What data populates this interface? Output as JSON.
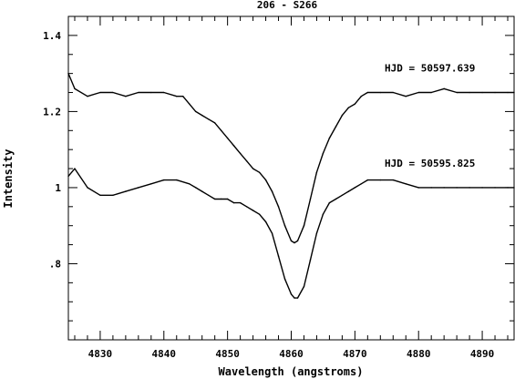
{
  "chart_data": {
    "type": "line",
    "title": "206 - S266",
    "xlabel": "Wavelength (angstroms)",
    "ylabel": "Intensity",
    "xlim": [
      4825,
      4895
    ],
    "ylim": [
      0.6,
      1.45
    ],
    "x_ticks": [
      4830,
      4840,
      4850,
      4860,
      4870,
      4880,
      4890
    ],
    "x_tick_labels": [
      "4830",
      "4840",
      "4850",
      "4860",
      "4870",
      "4880",
      "4890"
    ],
    "y_ticks": [
      0.8,
      1.0,
      1.2,
      1.4
    ],
    "y_tick_labels": [
      ".8",
      "1",
      "1.2",
      "1.4"
    ],
    "grid": false,
    "legend": "none",
    "line_color": "#000000",
    "series": [
      {
        "name": "HJD = 50597.639",
        "x": [
          4825,
          4826,
          4828,
          4830,
          4832,
          4834,
          4836,
          4838,
          4840,
          4842,
          4843,
          4844,
          4845,
          4846,
          4847,
          4848,
          4849,
          4850,
          4851,
          4852,
          4853,
          4854,
          4855,
          4856,
          4857,
          4858,
          4859,
          4860,
          4860.5,
          4861,
          4862,
          4863,
          4864,
          4865,
          4866,
          4867,
          4868,
          4869,
          4870,
          4871,
          4872,
          4874,
          4876,
          4878,
          4880,
          4882,
          4884,
          4886,
          4888,
          4890,
          4892,
          4894,
          4895
        ],
        "y": [
          1.3,
          1.26,
          1.24,
          1.25,
          1.25,
          1.24,
          1.25,
          1.25,
          1.25,
          1.24,
          1.24,
          1.22,
          1.2,
          1.19,
          1.18,
          1.17,
          1.15,
          1.13,
          1.11,
          1.09,
          1.07,
          1.05,
          1.04,
          1.02,
          0.99,
          0.95,
          0.9,
          0.86,
          0.855,
          0.86,
          0.9,
          0.97,
          1.04,
          1.09,
          1.13,
          1.16,
          1.19,
          1.21,
          1.22,
          1.24,
          1.25,
          1.25,
          1.25,
          1.24,
          1.25,
          1.25,
          1.26,
          1.25,
          1.25,
          1.25,
          1.25,
          1.25,
          1.25
        ]
      },
      {
        "name": "HJD = 50595.825",
        "x": [
          4825,
          4826,
          4828,
          4830,
          4832,
          4834,
          4836,
          4838,
          4840,
          4842,
          4844,
          4845,
          4846,
          4847,
          4848,
          4849,
          4850,
          4851,
          4852,
          4853,
          4854,
          4855,
          4856,
          4857,
          4858,
          4859,
          4860,
          4860.5,
          4861,
          4862,
          4863,
          4864,
          4865,
          4866,
          4867,
          4868,
          4869,
          4870,
          4871,
          4872,
          4874,
          4876,
          4878,
          4880,
          4882,
          4884,
          4886,
          4888,
          4890,
          4892,
          4894,
          4895
        ],
        "y": [
          1.03,
          1.05,
          1.0,
          0.98,
          0.98,
          0.99,
          1.0,
          1.01,
          1.02,
          1.02,
          1.01,
          1.0,
          0.99,
          0.98,
          0.97,
          0.97,
          0.97,
          0.96,
          0.96,
          0.95,
          0.94,
          0.93,
          0.91,
          0.88,
          0.82,
          0.76,
          0.72,
          0.71,
          0.71,
          0.74,
          0.81,
          0.88,
          0.93,
          0.96,
          0.97,
          0.98,
          0.99,
          1.0,
          1.01,
          1.02,
          1.02,
          1.02,
          1.01,
          1.0,
          1.0,
          1.0,
          1.0,
          1.0,
          1.0,
          1.0,
          1.0,
          1.0
        ]
      }
    ]
  }
}
